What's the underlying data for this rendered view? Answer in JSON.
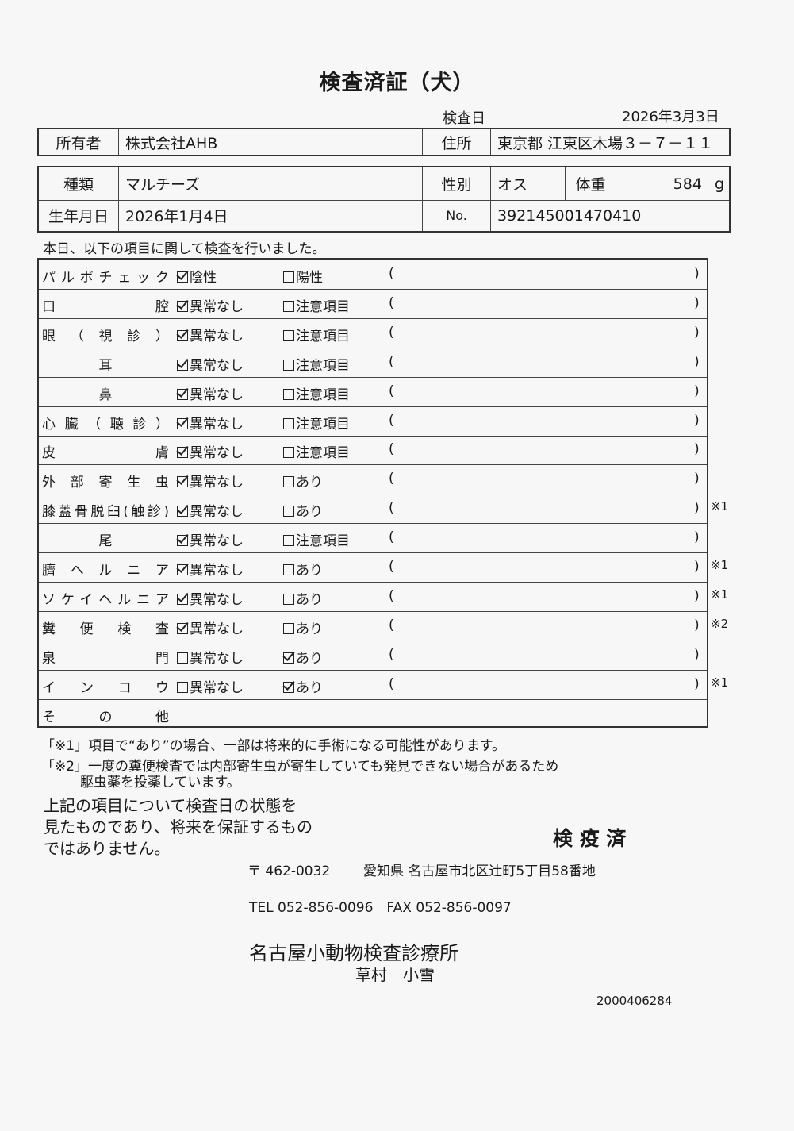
{
  "title": "検査済証（犬）",
  "exam_date_label": "検査日",
  "exam_date": "2026年3月3日",
  "owner": {
    "label": "所有者",
    "value": "株式会社AHB",
    "address_label": "住所",
    "address": "東京都 江東区木場３－７－１１"
  },
  "pet": {
    "breed_label": "種類",
    "breed": "マルチーズ",
    "sex_label": "性別",
    "sex": "オス",
    "weight_label": "体重",
    "weight": "584",
    "weight_unit": "g",
    "birth_label": "生年月日",
    "birth": "2026年1月4日",
    "no_label": "No.",
    "no": "392145001470410"
  },
  "intro": "本日、以下の項目に関して検査を行いました。",
  "rows": [
    {
      "label": "パルボチェック",
      "opt1": "陰性",
      "opt2": "陽性",
      "checked": 1,
      "note": ""
    },
    {
      "label": "口腔",
      "opt1": "異常なし",
      "opt2": "注意項目",
      "checked": 1,
      "note": ""
    },
    {
      "label": "眼（視診）",
      "opt1": "異常なし",
      "opt2": "注意項目",
      "checked": 1,
      "note": ""
    },
    {
      "label": "耳",
      "opt1": "異常なし",
      "opt2": "注意項目",
      "checked": 1,
      "note": "",
      "center": true
    },
    {
      "label": "鼻",
      "opt1": "異常なし",
      "opt2": "注意項目",
      "checked": 1,
      "note": "",
      "center": true
    },
    {
      "label": "心臓（聴診）",
      "opt1": "異常なし",
      "opt2": "注意項目",
      "checked": 1,
      "note": ""
    },
    {
      "label": "皮膚",
      "opt1": "異常なし",
      "opt2": "注意項目",
      "checked": 1,
      "note": ""
    },
    {
      "label": "外部寄生虫",
      "opt1": "異常なし",
      "opt2": "あり",
      "checked": 1,
      "note": ""
    },
    {
      "label": "膝蓋骨脱臼(触診)",
      "opt1": "異常なし",
      "opt2": "あり",
      "checked": 1,
      "note": "※1"
    },
    {
      "label": "尾",
      "opt1": "異常なし",
      "opt2": "注意項目",
      "checked": 1,
      "note": "",
      "center": true
    },
    {
      "label": "臍ヘルニア",
      "opt1": "異常なし",
      "opt2": "あり",
      "checked": 1,
      "note": "※1"
    },
    {
      "label": "ソケイヘルニア",
      "opt1": "異常なし",
      "opt2": "あり",
      "checked": 1,
      "note": "※1"
    },
    {
      "label": "糞便検査",
      "opt1": "異常なし",
      "opt2": "あり",
      "checked": 1,
      "note": "※2"
    },
    {
      "label": "泉門",
      "opt1": "異常なし",
      "opt2": "あり",
      "checked": 2,
      "note": ""
    },
    {
      "label": "インコウ",
      "opt1": "異常なし",
      "opt2": "あり",
      "checked": 2,
      "note": "※1"
    },
    {
      "label": "その他",
      "opt1": "",
      "opt2": "",
      "checked": 0,
      "note": "",
      "empty": true
    }
  ],
  "paren_open": "(",
  "paren_close": ")",
  "footnote1": "「※1」項目で“あり”の場合、一部は将来的に手術になる可能性があります。",
  "footnote2a": "「※2」一度の糞便検査では内部寄生虫が寄生していても発見できない場合があるため",
  "footnote2b": "駆虫薬を投薬しています。",
  "disclaimer": [
    "上記の項目について検査日の状態を",
    "見たものであり、将来を保証するもの",
    "ではありません。"
  ],
  "stamp": "検 疫 済",
  "clinic": {
    "postal": "〒 462-0032",
    "address": "愛知県 名古屋市北区辻町5丁目58番地",
    "phone": "TEL 052-856-0096　FAX 052-856-0097",
    "name": "名古屋小動物検査診療所",
    "person": "草村　小雪"
  },
  "doc_number": "2000406284"
}
